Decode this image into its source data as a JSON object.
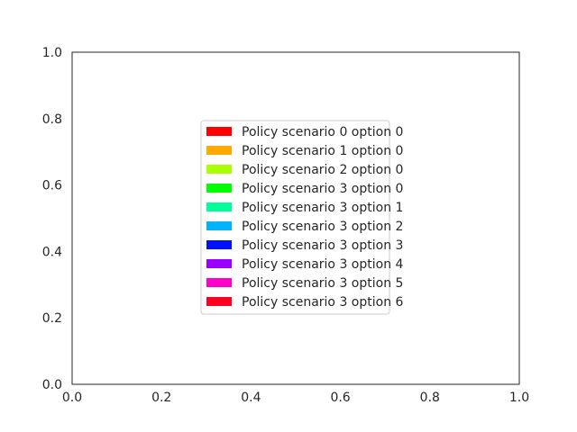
{
  "chart_data": {
    "type": "bar",
    "title": "",
    "xlabel": "",
    "ylabel": "",
    "xlim": [
      0.0,
      1.0
    ],
    "ylim": [
      0.0,
      1.0
    ],
    "xticks": [
      "0.0",
      "0.2",
      "0.4",
      "0.6",
      "0.8",
      "1.0"
    ],
    "yticks": [
      "0.0",
      "0.2",
      "0.4",
      "0.6",
      "0.8",
      "1.0"
    ],
    "grid": false,
    "legend_position": "center",
    "series": [
      {
        "name": "Policy scenario 0 option 0",
        "color": "#ff0000",
        "values": []
      },
      {
        "name": "Policy scenario 1 option 0",
        "color": "#ffaa00",
        "values": []
      },
      {
        "name": "Policy scenario 2 option 0",
        "color": "#aaff00",
        "values": []
      },
      {
        "name": "Policy scenario 3 option 0",
        "color": "#00ff00",
        "values": []
      },
      {
        "name": "Policy scenario 3 option 1",
        "color": "#00ff99",
        "values": []
      },
      {
        "name": "Policy scenario 3 option 2",
        "color": "#00b3ff",
        "values": []
      },
      {
        "name": "Policy scenario 3 option 3",
        "color": "#0011ff",
        "values": []
      },
      {
        "name": "Policy scenario 3 option 4",
        "color": "#9900ff",
        "values": []
      },
      {
        "name": "Policy scenario 3 option 5",
        "color": "#ff00cc",
        "values": []
      },
      {
        "name": "Policy scenario 3 option 6",
        "color": "#ff0022",
        "values": []
      }
    ]
  }
}
